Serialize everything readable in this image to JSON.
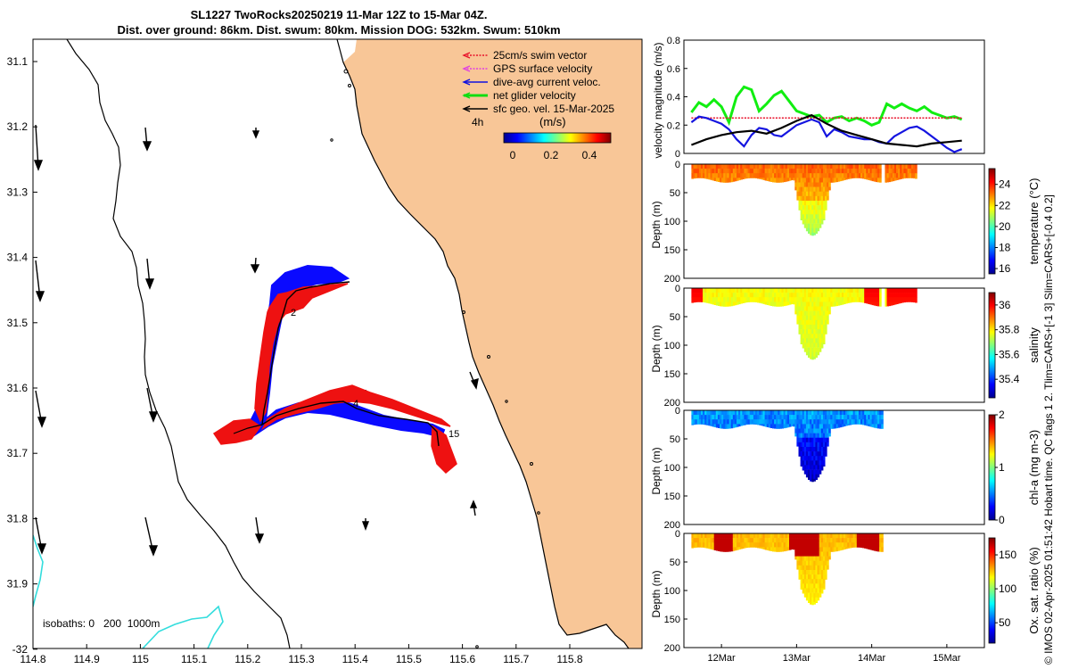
{
  "title": {
    "line1": "SL1227 TwoRocks20250219 11-Mar 12Z to 15-Mar 04Z.",
    "line2": "Dist. over ground: 86km. Dist. swum: 80km. Mission DOG: 532km. Swum: 510km"
  },
  "map": {
    "x_ticks": [
      "114.8",
      "114.9",
      "115",
      "115.1",
      "115.2",
      "115.3",
      "115.4",
      "115.5",
      "115.6",
      "115.7",
      "115.8"
    ],
    "y_ticks": [
      "31.1",
      "31.2",
      "31.3",
      "31.4",
      "31.5",
      "31.6",
      "31.7",
      "31.8",
      "31.9",
      "-32"
    ],
    "legend": [
      {
        "label": "25cm/s swim vector",
        "color": "#e8102a"
      },
      {
        "label": "GPS surface velocity",
        "color": "#e040e0"
      },
      {
        "label": "dive-avg current veloc.",
        "color": "#1010e0"
      },
      {
        "label": "net glider velocity",
        "color": "#11dd11"
      },
      {
        "label": "sfc geo. vel. 15-Mar-2025",
        "color": "#000000"
      }
    ],
    "time_label": "4h",
    "colorbar_title": "(m/s)",
    "colorbar_ticks": [
      "0",
      "0.2",
      "0.4"
    ],
    "isobaths_label": "isobaths: 0   200  1000m",
    "track_labels": [
      "2",
      "4",
      "15"
    ],
    "land_color": "#f8c697",
    "isobath_1000_color": "#33dddd"
  },
  "chart_data": [
    {
      "type": "line",
      "title": "",
      "ylabel": "velocity magnitude (m/s)",
      "ylim": [
        0,
        0.8
      ],
      "yticks": [
        "0",
        "0.2",
        "0.4",
        "0.6",
        "0.8"
      ],
      "xlim_days": [
        11.5,
        15.5
      ],
      "series": [
        {
          "name": "net glider velocity",
          "color": "#11ee11",
          "x": [
            11.6,
            11.7,
            11.8,
            11.9,
            12.0,
            12.1,
            12.2,
            12.3,
            12.4,
            12.5,
            12.6,
            12.7,
            12.8,
            12.9,
            13.0,
            13.1,
            13.2,
            13.3,
            13.4,
            13.5,
            13.6,
            13.7,
            13.8,
            13.9,
            14.0,
            14.1,
            14.2,
            14.3,
            14.4,
            14.5,
            14.6,
            14.7,
            14.8,
            14.9,
            15.0,
            15.1,
            15.2
          ],
          "values": [
            0.29,
            0.36,
            0.33,
            0.38,
            0.33,
            0.22,
            0.4,
            0.47,
            0.45,
            0.3,
            0.35,
            0.41,
            0.44,
            0.37,
            0.3,
            0.28,
            0.26,
            0.27,
            0.22,
            0.25,
            0.26,
            0.23,
            0.25,
            0.23,
            0.2,
            0.22,
            0.35,
            0.32,
            0.35,
            0.32,
            0.3,
            0.33,
            0.29,
            0.27,
            0.25,
            0.26,
            0.24
          ]
        },
        {
          "name": "25cm/s swim vector",
          "color": "#e8102a",
          "x": [
            11.6,
            15.2
          ],
          "values": [
            0.25,
            0.25
          ]
        },
        {
          "name": "dive-avg current veloc.",
          "color": "#1515e0",
          "x": [
            11.6,
            11.7,
            11.8,
            11.9,
            12.0,
            12.1,
            12.2,
            12.3,
            12.4,
            12.5,
            12.6,
            12.7,
            12.8,
            12.9,
            13.0,
            13.1,
            13.2,
            13.3,
            13.4,
            13.5,
            13.6,
            13.7,
            13.8,
            13.9,
            14.0,
            14.1,
            14.2,
            14.3,
            14.4,
            14.5,
            14.6,
            14.7,
            14.8,
            14.9,
            15.0,
            15.1,
            15.2
          ],
          "values": [
            0.22,
            0.26,
            0.25,
            0.23,
            0.21,
            0.17,
            0.1,
            0.05,
            0.13,
            0.18,
            0.17,
            0.13,
            0.12,
            0.16,
            0.2,
            0.22,
            0.24,
            0.22,
            0.12,
            0.17,
            0.15,
            0.12,
            0.11,
            0.1,
            0.1,
            0.08,
            0.07,
            0.12,
            0.15,
            0.18,
            0.19,
            0.16,
            0.12,
            0.08,
            0.04,
            0.01,
            0.03
          ]
        },
        {
          "name": "sfc geo. vel.",
          "color": "#000000",
          "x": [
            11.6,
            11.8,
            12.0,
            12.2,
            12.4,
            12.6,
            12.8,
            13.0,
            13.2,
            13.4,
            13.6,
            13.8,
            14.0,
            14.2,
            14.4,
            14.6,
            14.8,
            15.0,
            15.2
          ],
          "values": [
            0.06,
            0.1,
            0.13,
            0.15,
            0.16,
            0.14,
            0.18,
            0.23,
            0.27,
            0.21,
            0.16,
            0.13,
            0.1,
            0.07,
            0.06,
            0.05,
            0.07,
            0.08,
            0.09
          ]
        }
      ]
    },
    {
      "type": "heatmap",
      "variable": "temperature",
      "ylabel": "Depth (m)",
      "clabel": "temperature (°C)",
      "ylim": [
        0,
        200
      ],
      "yticks": [
        "0",
        "50",
        "100",
        "150",
        "200"
      ],
      "clim": [
        15.5,
        25.5
      ],
      "cticks": [
        "16",
        "18",
        "20",
        "22",
        "24"
      ],
      "base_value": 23.3,
      "deep_value": 21.3,
      "coverage_end": 14.6
    },
    {
      "type": "heatmap",
      "variable": "salinity",
      "ylabel": "Depth (m)",
      "clabel": "salinity",
      "ylim": [
        0,
        200
      ],
      "yticks": [
        "0",
        "50",
        "100",
        "150",
        "200"
      ],
      "clim": [
        35.25,
        36.1
      ],
      "cticks": [
        "35.4",
        "35.6",
        "35.8",
        "36"
      ],
      "base_value": 35.78,
      "deep_value": 35.74,
      "coverage_end": 14.6
    },
    {
      "type": "heatmap",
      "variable": "chl-a",
      "ylabel": "Depth (m)",
      "clabel": "chl-a (mg m-3)",
      "ylim": [
        0,
        200
      ],
      "yticks": [
        "0",
        "50",
        "100",
        "150",
        "200"
      ],
      "clim": [
        0,
        2
      ],
      "cticks": [
        "0",
        "1",
        "2"
      ],
      "base_value": 0.55,
      "deep_value": 0.3,
      "coverage_end": 14.15
    },
    {
      "type": "heatmap",
      "variable": "oxygen saturation",
      "ylabel": "Depth (m)",
      "clabel": "Ox. sat. ratio (%)",
      "ylim": [
        0,
        200
      ],
      "yticks": [
        "0",
        "50",
        "100",
        "150",
        "200"
      ],
      "clim": [
        20,
        175
      ],
      "cticks": [
        "50",
        "100",
        "150"
      ],
      "base_value": 128,
      "deep_value": 118,
      "coverage_end": 14.15
    }
  ],
  "time_axis": {
    "ticks": [
      {
        "day": 12,
        "label": "12Mar"
      },
      {
        "day": 13,
        "label": "13Mar"
      },
      {
        "day": 14,
        "label": "14Mar"
      },
      {
        "day": 15,
        "label": "15Mar"
      }
    ]
  },
  "footer": "© IMOS 02-Apr-2025 01:51:42 Hobart time. QC flags 1  2. Tlim=CARS+[-1 3] Slim=CARS+[-0.4 0.2]"
}
